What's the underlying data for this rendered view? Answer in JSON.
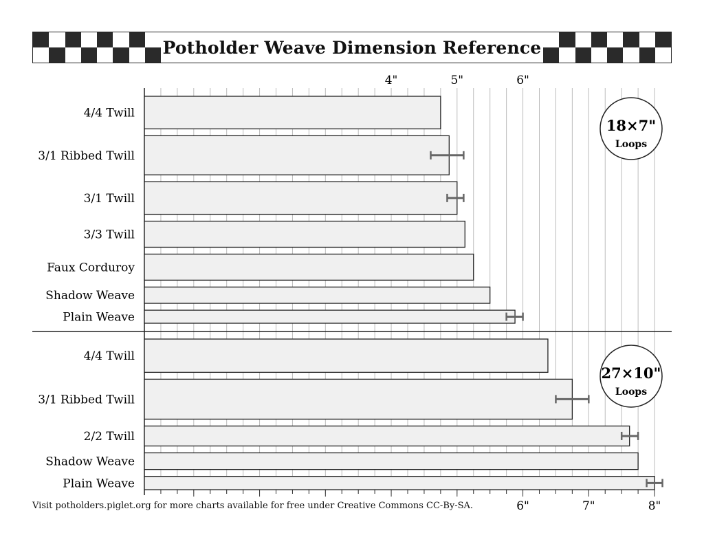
{
  "title": "Potholder Weave Dimension Reference",
  "footer": "Visit potholders.piglet.org for more charts available for free under Creative Commons CC-By-SA.",
  "colors": {
    "bar_fill": "#f0f0f0",
    "bar_stroke": "#222222",
    "error_bar": "#666666",
    "grid": "#bbbbbb"
  },
  "chart_data": [
    {
      "type": "bar",
      "orientation": "horizontal",
      "group_label": {
        "size": "18×7\"",
        "unit": "Loops"
      },
      "axis": {
        "position": "top",
        "ticks": [
          "4\"",
          "5\"",
          "6\""
        ],
        "tick_values": [
          4,
          5,
          6
        ],
        "xlim": [
          0.25,
          8.25
        ]
      },
      "categories": [
        "4/4 Twill",
        "3/1 Ribbed Twill",
        "3/1 Twill",
        "3/3 Twill",
        "Faux Corduroy",
        "Shadow Weave",
        "Plain Weave"
      ],
      "values": [
        4.75,
        4.88,
        5.0,
        5.12,
        5.25,
        5.5,
        5.88
      ],
      "bar_heights": [
        2.5,
        3.0,
        2.5,
        2.0,
        2.0,
        1.25,
        1.0
      ],
      "error_low": [
        null,
        4.6,
        4.85,
        null,
        null,
        null,
        5.75
      ],
      "error_high": [
        null,
        5.1,
        5.1,
        null,
        null,
        null,
        6.0
      ]
    },
    {
      "type": "bar",
      "orientation": "horizontal",
      "group_label": {
        "size": "27×10\"",
        "unit": "Loops"
      },
      "axis": {
        "position": "bottom",
        "ticks": [
          "6\"",
          "7\"",
          "8\""
        ],
        "tick_values": [
          6,
          7,
          8
        ],
        "xlim": [
          0.25,
          8.25
        ]
      },
      "categories": [
        "4/4 Twill",
        "3/1 Ribbed Twill",
        "2/2 Twill",
        "Shadow Weave",
        "Plain Weave"
      ],
      "values": [
        6.38,
        6.75,
        7.62,
        7.75,
        8.0
      ],
      "bar_heights": [
        2.5,
        3.0,
        1.5,
        1.25,
        1.0
      ],
      "error_low": [
        null,
        6.5,
        7.5,
        null,
        7.88
      ],
      "error_high": [
        null,
        7.0,
        7.75,
        null,
        8.12
      ]
    }
  ]
}
